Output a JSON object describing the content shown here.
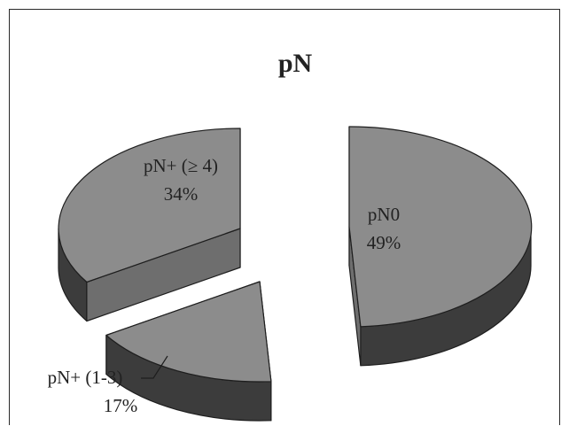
{
  "chart_data": {
    "type": "pie",
    "style": "3d-exploded",
    "title": "pN",
    "slices": [
      {
        "name": "pN0",
        "value": 49,
        "label": "49%"
      },
      {
        "name": "pN+ (1-3)",
        "value": 17,
        "label": "17%"
      },
      {
        "name": "pN+ (≥ 4)",
        "value": 34,
        "label": "34%"
      }
    ],
    "legend": "none",
    "colors": {
      "top": "#8c8c8c",
      "side": "#6e6e6e",
      "side_dark": "#3c3c3c",
      "edge": "#1e1e1e",
      "background": "#ffffff",
      "text": "#222222"
    }
  }
}
